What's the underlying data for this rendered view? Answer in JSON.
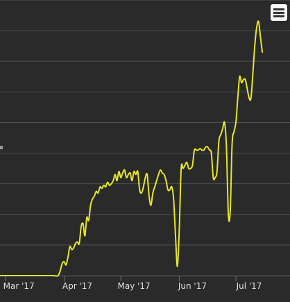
{
  "chart_data": {
    "type": "line",
    "colors": {
      "line": "#e6e62c",
      "background": "#2a2a2b",
      "grid": "#505053",
      "axis_line": "#707073",
      "tick_label": "#e0e0e3"
    },
    "grid": true,
    "x_ticks": [
      "Mar '17",
      "Apr '17",
      "May '17",
      "Jun '17",
      "Jul '17"
    ],
    "ylim": [
      0,
      9
    ],
    "series": [
      {
        "points": [
          [
            "2017-02-26",
            0
          ],
          [
            "2017-03-05",
            0
          ],
          [
            "2017-03-12",
            0
          ],
          [
            "2017-03-19",
            0
          ],
          [
            "2017-03-26",
            0
          ],
          [
            "2017-03-29",
            0.02
          ],
          [
            "2017-03-31",
            0.4
          ],
          [
            "2017-04-01",
            0.45
          ],
          [
            "2017-04-02",
            0.35
          ],
          [
            "2017-04-03",
            0.6
          ],
          [
            "2017-04-04",
            0.95
          ],
          [
            "2017-04-05",
            0.85
          ],
          [
            "2017-04-06",
            0.9
          ],
          [
            "2017-04-07",
            1.05
          ],
          [
            "2017-04-08",
            1.1
          ],
          [
            "2017-04-09",
            1.05
          ],
          [
            "2017-04-10",
            1.6
          ],
          [
            "2017-04-11",
            1.7
          ],
          [
            "2017-04-12",
            1.3
          ],
          [
            "2017-04-13",
            1.9
          ],
          [
            "2017-04-14",
            1.8
          ],
          [
            "2017-04-15",
            2.3
          ],
          [
            "2017-04-16",
            2.5
          ],
          [
            "2017-04-17",
            2.6
          ],
          [
            "2017-04-18",
            2.75
          ],
          [
            "2017-04-19",
            2.7
          ],
          [
            "2017-04-20",
            2.9
          ],
          [
            "2017-04-21",
            2.85
          ],
          [
            "2017-04-22",
            2.95
          ],
          [
            "2017-04-23",
            2.9
          ],
          [
            "2017-04-24",
            3.05
          ],
          [
            "2017-04-25",
            2.95
          ],
          [
            "2017-04-26",
            3.0
          ],
          [
            "2017-04-27",
            3.1
          ],
          [
            "2017-04-28",
            3.3
          ],
          [
            "2017-04-29",
            3.1
          ],
          [
            "2017-04-30",
            3.4
          ],
          [
            "2017-05-01",
            3.2
          ],
          [
            "2017-05-02",
            3.35
          ],
          [
            "2017-05-03",
            3.45
          ],
          [
            "2017-05-04",
            3.2
          ],
          [
            "2017-05-05",
            3.3
          ],
          [
            "2017-05-06",
            3.35
          ],
          [
            "2017-05-07",
            3.1
          ],
          [
            "2017-05-08",
            3.4
          ],
          [
            "2017-05-09",
            3.3
          ],
          [
            "2017-05-10",
            3.4
          ],
          [
            "2017-05-11",
            2.8
          ],
          [
            "2017-05-12",
            2.7
          ],
          [
            "2017-05-13",
            2.9
          ],
          [
            "2017-05-14",
            3.2
          ],
          [
            "2017-05-15",
            3.3
          ],
          [
            "2017-05-16",
            2.6
          ],
          [
            "2017-05-17",
            2.3
          ],
          [
            "2017-05-18",
            2.7
          ],
          [
            "2017-05-19",
            2.9
          ],
          [
            "2017-05-20",
            3.1
          ],
          [
            "2017-05-21",
            3.3
          ],
          [
            "2017-05-22",
            3.45
          ],
          [
            "2017-05-23",
            3.35
          ],
          [
            "2017-05-24",
            3.3
          ],
          [
            "2017-05-25",
            3.1
          ],
          [
            "2017-05-26",
            2.8
          ],
          [
            "2017-05-27",
            2.8
          ],
          [
            "2017-05-28",
            2.9
          ],
          [
            "2017-05-29",
            2.5
          ],
          [
            "2017-05-30",
            1.3
          ],
          [
            "2017-05-31",
            0.3
          ],
          [
            "2017-06-01",
            1.5
          ],
          [
            "2017-06-02",
            3.5
          ],
          [
            "2017-06-03",
            3.5
          ],
          [
            "2017-06-04",
            3.6
          ],
          [
            "2017-06-05",
            3.7
          ],
          [
            "2017-06-06",
            3.5
          ],
          [
            "2017-06-07",
            3.5
          ],
          [
            "2017-06-08",
            3.6
          ],
          [
            "2017-06-09",
            4.1
          ],
          [
            "2017-06-10",
            4.1
          ],
          [
            "2017-06-11",
            4.1
          ],
          [
            "2017-06-12",
            4.15
          ],
          [
            "2017-06-13",
            4.1
          ],
          [
            "2017-06-14",
            4.1
          ],
          [
            "2017-06-15",
            4.2
          ],
          [
            "2017-06-16",
            4.2
          ],
          [
            "2017-06-17",
            4.1
          ],
          [
            "2017-06-18",
            4.0
          ],
          [
            "2017-06-19",
            3.2
          ],
          [
            "2017-06-20",
            3.2
          ],
          [
            "2017-06-21",
            3.4
          ],
          [
            "2017-06-22",
            4.4
          ],
          [
            "2017-06-23",
            4.6
          ],
          [
            "2017-06-24",
            4.8
          ],
          [
            "2017-06-25",
            5.0
          ],
          [
            "2017-06-26",
            4.2
          ],
          [
            "2017-06-27",
            2.0
          ],
          [
            "2017-06-28",
            2.1
          ],
          [
            "2017-06-29",
            4.3
          ],
          [
            "2017-06-30",
            4.7
          ],
          [
            "2017-07-01",
            5.0
          ],
          [
            "2017-07-02",
            5.8
          ],
          [
            "2017-07-03",
            6.5
          ],
          [
            "2017-07-04",
            6.3
          ],
          [
            "2017-07-05",
            6.4
          ],
          [
            "2017-07-06",
            6.4
          ],
          [
            "2017-07-07",
            6.1
          ],
          [
            "2017-07-08",
            5.8
          ],
          [
            "2017-07-09",
            5.8
          ],
          [
            "2017-07-10",
            6.6
          ],
          [
            "2017-07-11",
            7.5
          ],
          [
            "2017-07-12",
            8.1
          ],
          [
            "2017-07-13",
            8.3
          ],
          [
            "2017-07-14",
            7.8
          ],
          [
            "2017-07-15",
            7.3
          ]
        ]
      }
    ]
  },
  "toolbar": {
    "menu_icon": "hamburger-menu-icon"
  }
}
